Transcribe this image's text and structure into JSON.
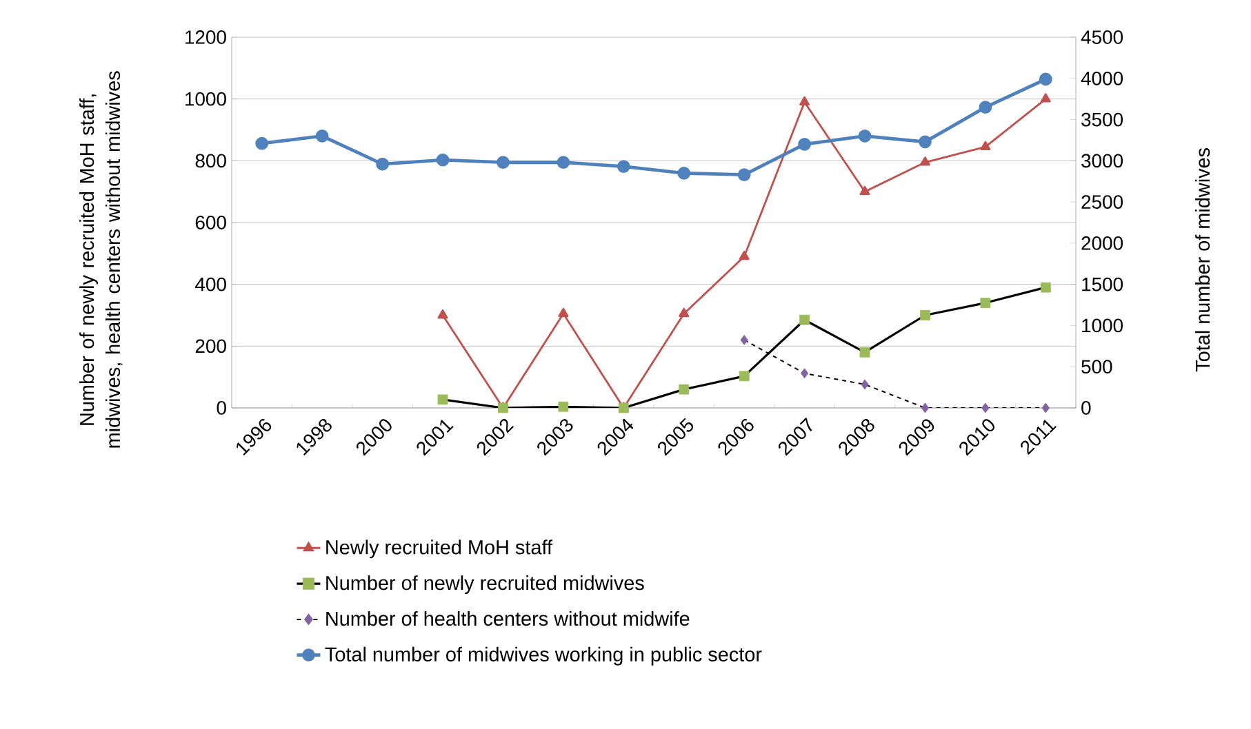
{
  "chart_data": {
    "type": "line",
    "ylabel": "Number of newly recruited MoH staff, midwives, health centers without midwives",
    "y2label": "Total number of midwives",
    "categories": [
      "1996",
      "1998",
      "2000",
      "2001",
      "2002",
      "2003",
      "2004",
      "2005",
      "2006",
      "2007",
      "2008",
      "2009",
      "2010",
      "2011"
    ],
    "series": [
      {
        "name": "Newly recruited MoH staff",
        "color": "#c0504d",
        "marker": "triangle",
        "line_style": "solid",
        "values": [
          null,
          null,
          null,
          300,
          0,
          305,
          0,
          305,
          490,
          990,
          700,
          795,
          845,
          1000
        ]
      },
      {
        "name": "Number of newly recruited midwives",
        "color": "#000000",
        "marker": "square",
        "line_style": "solid",
        "colors": [
          null,
          null,
          null,
          "#9bbb59",
          "#9bbb59",
          "#9bbb59",
          "#9bbb59",
          "#9bbb59",
          "#9bbb59",
          "#9bbb59",
          "#9bbb59",
          "#9bbb59",
          "#9bbb59",
          "#9bbb59"
        ],
        "values": [
          null,
          null,
          null,
          27,
          0,
          4,
          0,
          60,
          103,
          285,
          180,
          300,
          340,
          390
        ]
      },
      {
        "name": "Number of health centers without midwife",
        "color": "#000000",
        "marker": "diamond",
        "line_style": "dashed",
        "colors": [
          null,
          null,
          null,
          null,
          null,
          null,
          null,
          null,
          "#8064a2",
          "#8064a2",
          "#8064a2",
          "#8064a2",
          "#8064a2",
          "#8064a2"
        ],
        "values": [
          null,
          null,
          null,
          null,
          null,
          null,
          null,
          null,
          220,
          112,
          76,
          0,
          0,
          0
        ]
      },
      {
        "name": "Total number of midwives working in public sector",
        "color": "#4f81bd",
        "marker": "circle",
        "line_style": "solid",
        "axis": "y2",
        "values": [
          3210,
          3300,
          2960,
          3010,
          2980,
          2980,
          2930,
          2850,
          2830,
          3200,
          3300,
          3230,
          3650,
          3990
        ]
      }
    ],
    "ylim": [
      0,
      1200
    ],
    "yticks": [
      0,
      200,
      400,
      600,
      800,
      1000,
      1200
    ],
    "y2lim": [
      0,
      4500
    ],
    "y2ticks": [
      0,
      500,
      1000,
      1500,
      2000,
      2500,
      3000,
      3500,
      4000,
      4500
    ],
    "grid": "y",
    "legend": "bottom"
  }
}
